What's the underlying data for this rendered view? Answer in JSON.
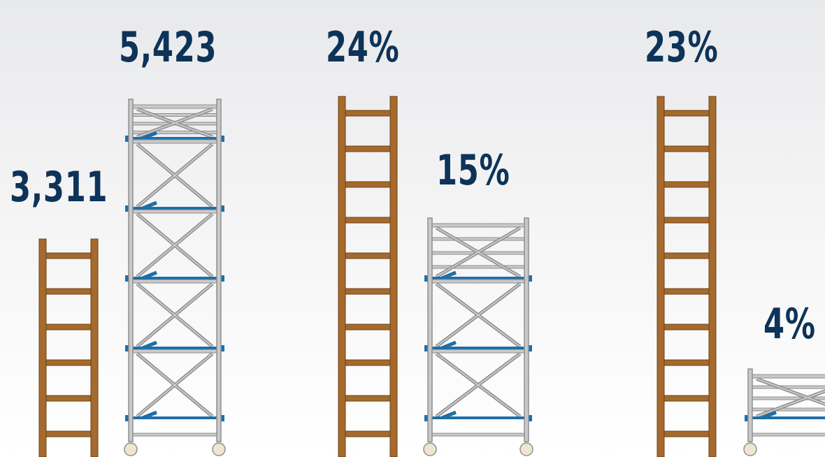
{
  "chart_data": {
    "type": "bar",
    "title": "",
    "xlabel": "",
    "ylabel": "",
    "categories": [
      "group-1",
      "group-2",
      "group-3"
    ],
    "series": [
      {
        "icon": "wooden-ladder-icon",
        "color": "#a56a2c"
      },
      {
        "icon": "scaffold-tower-icon",
        "color": "#8a8a8a"
      }
    ],
    "groups": [
      {
        "ladder_label": "3,311",
        "ladder_value": 3311,
        "scaffold_label": "5,423",
        "scaffold_value": 5423
      },
      {
        "ladder_label": "24%",
        "ladder_value": 24,
        "scaffold_label": "15%",
        "scaffold_value": 15
      },
      {
        "ladder_label": "23%",
        "ladder_value": 23,
        "scaffold_label": "4%",
        "scaffold_value": 4
      }
    ],
    "colors": {
      "label": "#0d3358",
      "wood": "#a56a2c",
      "wood_dark": "#6b4218",
      "steel": "#8f8f8f",
      "steel_light": "#c9c9c9",
      "clamp_blue": "#1e6fa8",
      "wheel": "#efe6cf"
    }
  }
}
